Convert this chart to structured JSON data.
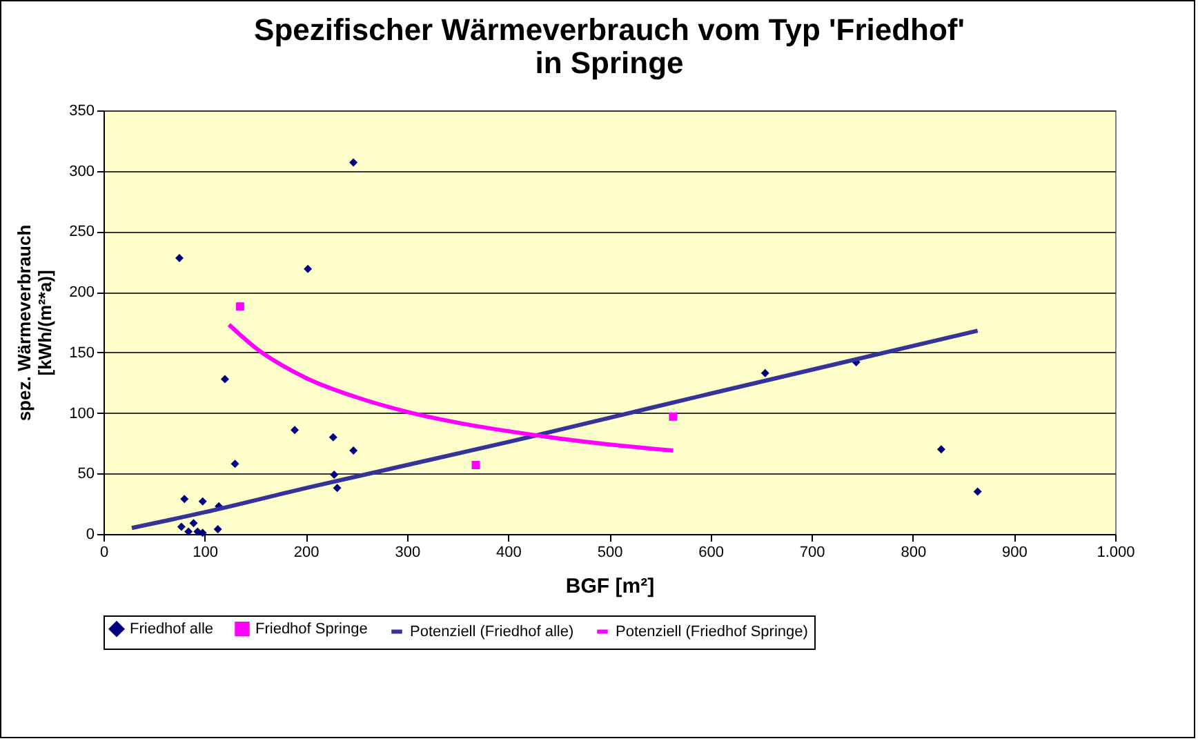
{
  "chart_data": {
    "type": "scatter",
    "title": "Spezifischer Wärmeverbrauch vom Typ 'Friedhof'\nin Springe",
    "xlabel": "BGF [m²]",
    "ylabel": "spez. Wärmeverbrauch\n[kWh/(m²*a)]",
    "xlim": [
      0,
      1000
    ],
    "ylim": [
      0,
      350
    ],
    "xticks": [
      0,
      100,
      200,
      300,
      400,
      500,
      600,
      700,
      800,
      900,
      {
        "value": 1000,
        "label": "1.000"
      }
    ],
    "yticks": [
      0,
      50,
      100,
      150,
      200,
      250,
      300,
      350
    ],
    "grid": "y",
    "legend": "bottom",
    "series": [
      {
        "name": "Friedhof alle",
        "marker": "diamond",
        "color": "#000080",
        "x": [
          75,
          247,
          202,
          120,
          130,
          189,
          227,
          247,
          228,
          231,
          80,
          98,
          114,
          77,
          84,
          89,
          93,
          98,
          113,
          654,
          744,
          828,
          864
        ],
        "values": [
          228,
          307,
          219,
          128,
          58,
          86,
          80,
          69,
          49,
          38,
          29,
          27,
          23,
          6,
          2,
          9,
          2,
          1,
          4,
          133,
          142,
          70,
          35
        ]
      },
      {
        "name": "Friedhof Springe",
        "marker": "square",
        "color": "#ff00ff",
        "x": [
          135,
          368,
          563
        ],
        "values": [
          188,
          57,
          97
        ]
      },
      {
        "name": "Potenziell (Friedhof alle)",
        "type": "line",
        "marker": "none",
        "color": "#333399",
        "x": [
          28,
          100,
          200,
          400,
          500,
          600,
          864
        ],
        "values": [
          5,
          18,
          38,
          76,
          96,
          116,
          168
        ]
      },
      {
        "name": "Potenziell (Friedhof Springe)",
        "type": "line",
        "marker": "none",
        "color": "#ff00ff",
        "x": [
          124,
          150,
          200,
          250,
          300,
          350,
          400,
          450,
          500,
          563
        ],
        "values": [
          173,
          154,
          129,
          113,
          101,
          92,
          85,
          79,
          74,
          69
        ]
      }
    ]
  }
}
